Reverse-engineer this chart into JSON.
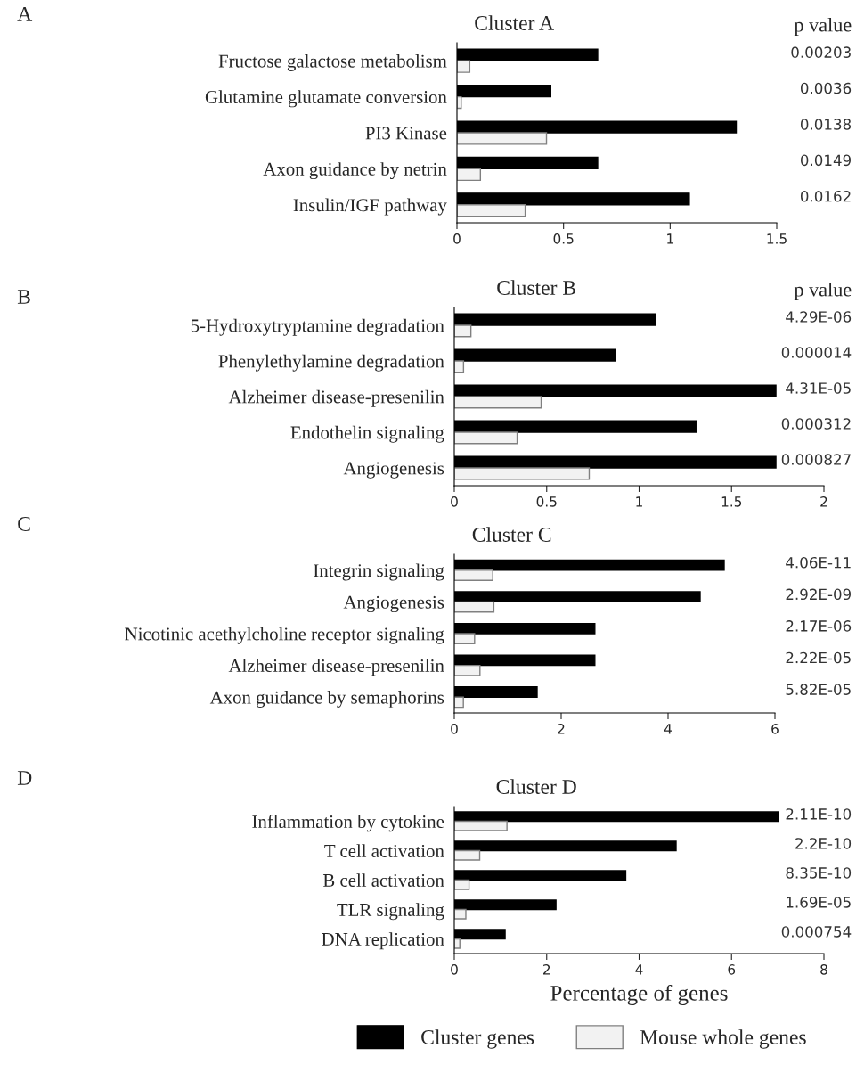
{
  "chart_data": [
    {
      "type": "bar",
      "orientation": "horizontal",
      "title": "Cluster A",
      "categories": [
        "Fructose galactose metabolism",
        "Glutamine glutamate conversion",
        "PI3 Kinase",
        "Axon guidance by netrin",
        "Insulin/IGF pathway"
      ],
      "series": [
        {
          "color": "#000000",
          "values": [
            0.66,
            0.44,
            1.31,
            0.66,
            1.09
          ]
        },
        {
          "color": "#f2f2f2",
          "values": [
            0.06,
            0.02,
            0.42,
            0.11,
            0.32
          ]
        }
      ],
      "xlim": [
        0,
        1.5
      ],
      "xticks": [
        0,
        0.5,
        1,
        1.5
      ],
      "grid": false,
      "legend": false,
      "annotations": [
        "A",
        "p value",
        "0.00203",
        "0.0036",
        "0.0138",
        "0.0149",
        "0.0162"
      ]
    },
    {
      "type": "bar",
      "orientation": "horizontal",
      "title": "Cluster B",
      "categories": [
        "5-Hydroxytryptamine degradation",
        "Phenylethylamine degradation",
        "Alzheimer disease-presenilin",
        "Endothelin signaling",
        "Angiogenesis"
      ],
      "series": [
        {
          "color": "#000000",
          "values": [
            1.09,
            0.87,
            1.74,
            1.31,
            1.74
          ]
        },
        {
          "color": "#f2f2f2",
          "values": [
            0.09,
            0.05,
            0.47,
            0.34,
            0.73
          ]
        }
      ],
      "xlim": [
        0,
        2
      ],
      "xticks": [
        0,
        0.5,
        1,
        1.5,
        2
      ],
      "grid": false,
      "legend": false,
      "annotations": [
        "B",
        "p value",
        "4.29E-06",
        "0.000014",
        "4.31E-05",
        "0.000312",
        "0.000827"
      ]
    },
    {
      "type": "bar",
      "orientation": "horizontal",
      "title": "Cluster C",
      "categories": [
        "Integrin signaling",
        "Angiogenesis",
        "Nicotinic acethylcholine receptor signaling",
        "Alzheimer disease-presenilin",
        "Axon guidance by semaphorins"
      ],
      "series": [
        {
          "color": "#000000",
          "values": [
            5.05,
            4.6,
            2.63,
            2.63,
            1.55
          ]
        },
        {
          "color": "#f2f2f2",
          "values": [
            0.72,
            0.74,
            0.38,
            0.48,
            0.17
          ]
        }
      ],
      "xlim": [
        0,
        6
      ],
      "xticks": [
        0,
        2,
        4,
        6
      ],
      "grid": false,
      "legend": false,
      "annotations": [
        "C",
        "4.06E-11",
        "2.92E-09",
        "2.17E-06",
        "2.22E-05",
        "5.82E-05"
      ]
    },
    {
      "type": "bar",
      "orientation": "horizontal",
      "title": "Cluster D",
      "xlabel": "Percentage of genes",
      "categories": [
        "Inflammation by cytokine",
        "T cell activation",
        "B cell activation",
        "TLR signaling",
        "DNA replication"
      ],
      "series": [
        {
          "name": "Cluster genes",
          "color": "#000000",
          "values": [
            7.01,
            4.8,
            3.71,
            2.2,
            1.1
          ]
        },
        {
          "name": "Mouse whole genes",
          "color": "#f2f2f2",
          "values": [
            1.14,
            0.55,
            0.32,
            0.25,
            0.12
          ]
        }
      ],
      "xlim": [
        0,
        8
      ],
      "xticks": [
        0,
        2,
        4,
        6,
        8
      ],
      "grid": false,
      "legend": "bottom",
      "annotations": [
        "D",
        "2.11E-10",
        "2.2E-10",
        "8.35E-10",
        "1.69E-05",
        "0.000754"
      ]
    }
  ]
}
